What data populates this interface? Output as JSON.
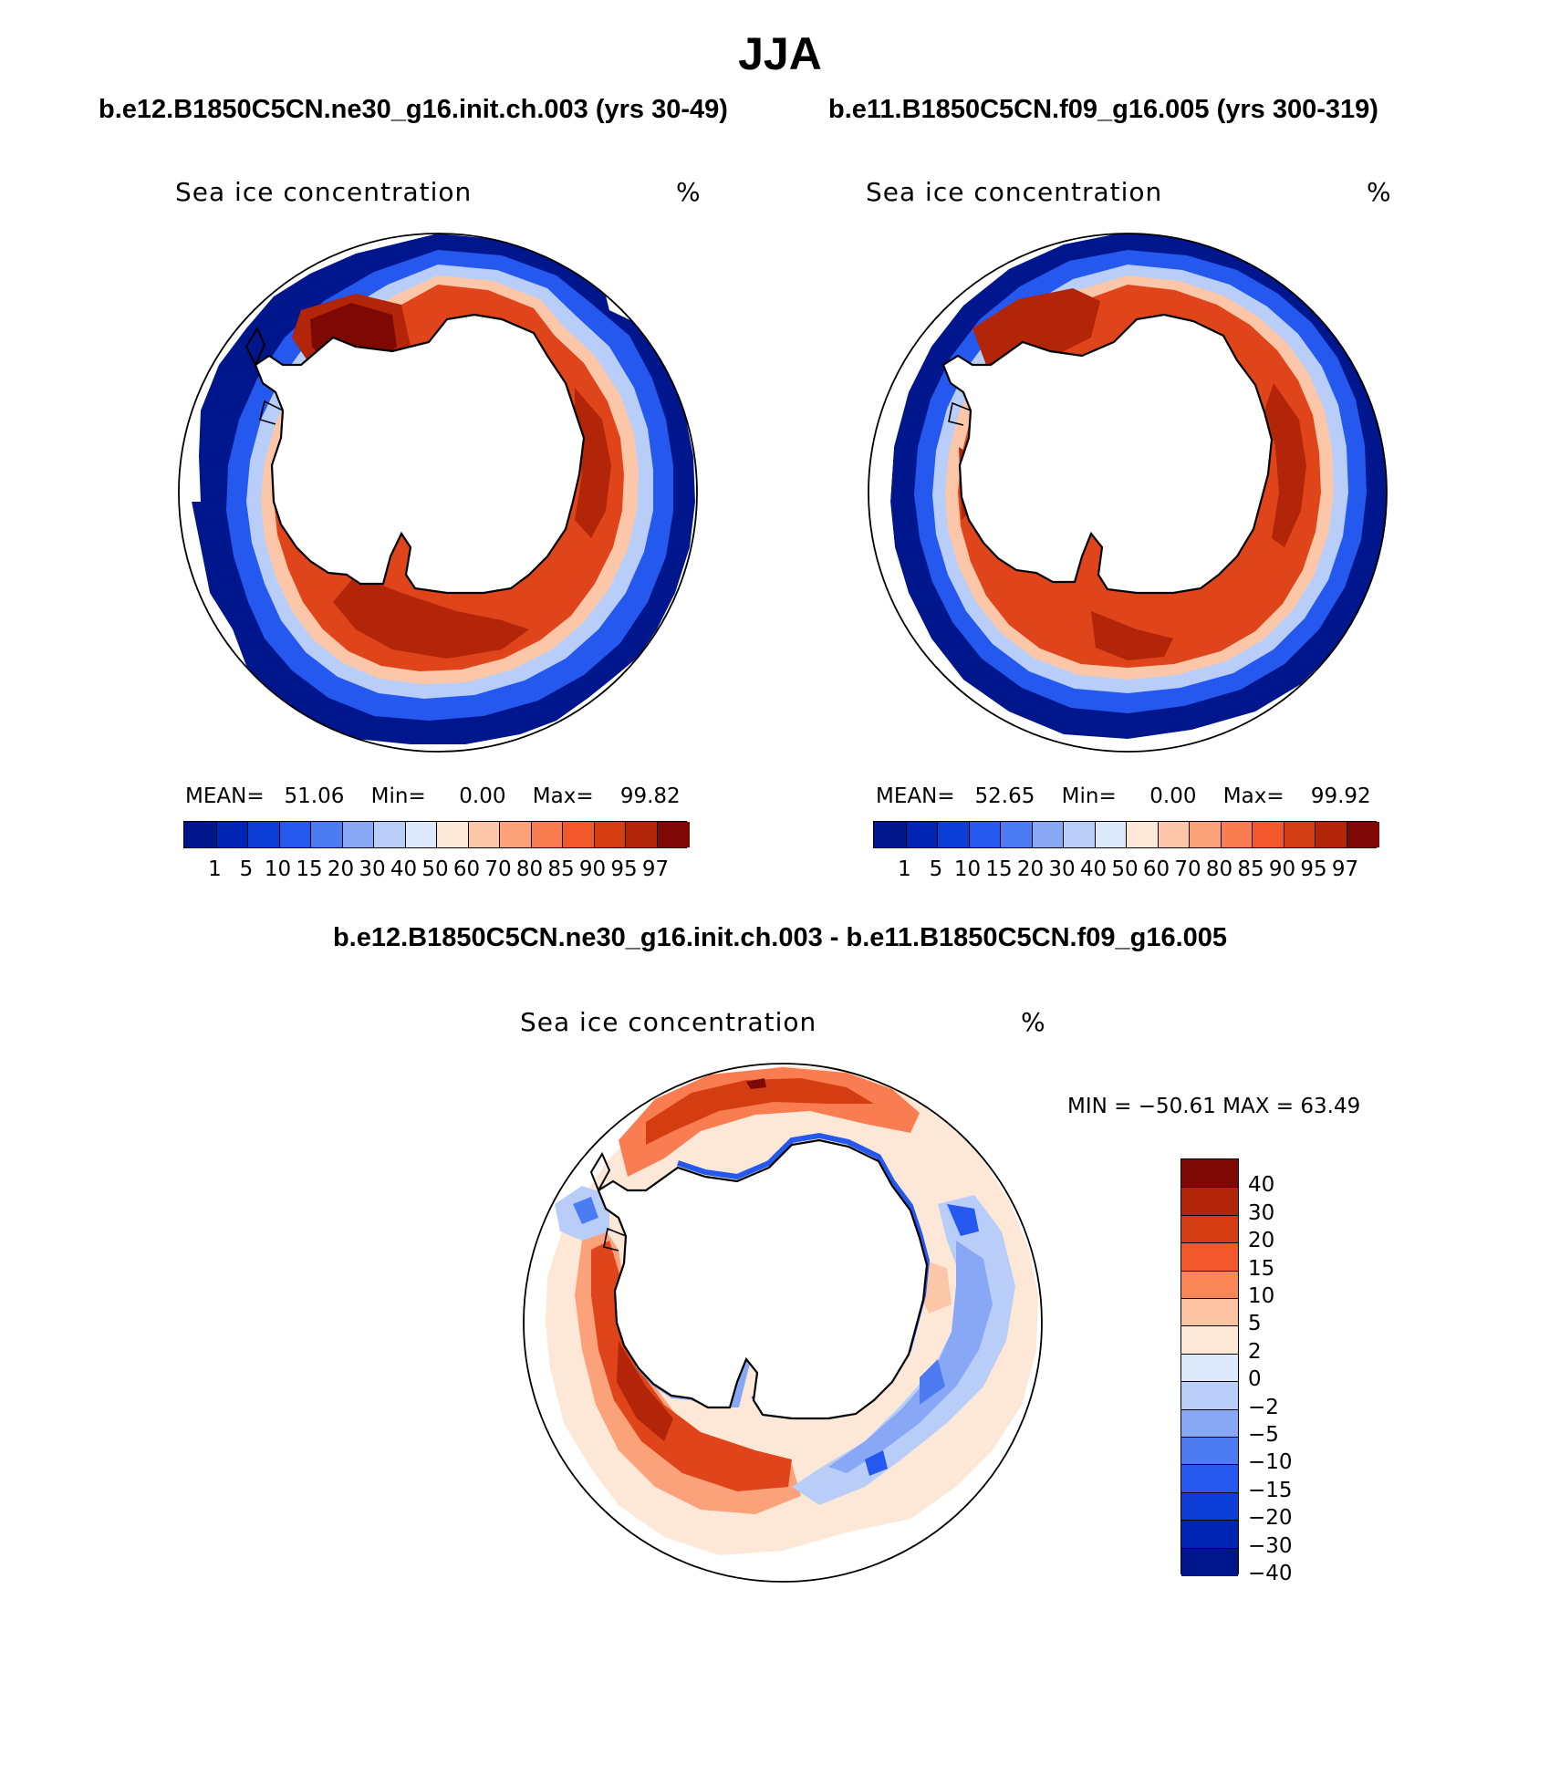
{
  "title": "JJA",
  "panels": [
    {
      "case_title": "b.e12.B1850C5CN.ne30_g16.init.ch.003 (yrs 30-49)",
      "variable": "Sea ice concentration",
      "units": "%",
      "stats": {
        "mean_label": "MEAN=",
        "mean": "51.06",
        "min_label": "Min=",
        "min": "0.00",
        "max_label": "Max=",
        "max": "99.82"
      }
    },
    {
      "case_title": "b.e11.B1850C5CN.f09_g16.005 (yrs 300-319)",
      "variable": "Sea ice concentration",
      "units": "%",
      "stats": {
        "mean_label": "MEAN=",
        "mean": "52.65",
        "min_label": "Min=",
        "min": "0.00",
        "max_label": "Max=",
        "max": "99.92"
      }
    }
  ],
  "diff_panel": {
    "title": "b.e12.B1850C5CN.ne30_g16.init.ch.003 - b.e11.B1850C5CN.f09_g16.005",
    "variable": "Sea ice concentration",
    "units": "%",
    "minmax_text": "MIN = −50.61  MAX =    63.49"
  },
  "abs_colorbar": {
    "labels": [
      "1",
      "5",
      "10",
      "15",
      "20",
      "30",
      "40",
      "50",
      "60",
      "70",
      "80",
      "85",
      "90",
      "95",
      "97"
    ],
    "colors": [
      "#00168c",
      "#0025b4",
      "#0e3ed8",
      "#2458ee",
      "#4d7cf2",
      "#88a8f6",
      "#b8cef9",
      "#dceafc",
      "#fde8d8",
      "#fcc7a8",
      "#fba27a",
      "#f97d50",
      "#f2582c",
      "#d43d12",
      "#b22508",
      "#7e0904"
    ]
  },
  "diff_colorbar": {
    "labels": [
      "40",
      "30",
      "20",
      "15",
      "10",
      "5",
      "2",
      "0",
      "−2",
      "−5",
      "−10",
      "−15",
      "−20",
      "−30",
      "−40"
    ],
    "colors": [
      "#7e0904",
      "#b22508",
      "#d43d12",
      "#f2582c",
      "#fb8757",
      "#fcc2a2",
      "#fde8d8",
      "#dceafc",
      "#b8cef9",
      "#88a8f6",
      "#4d7cf2",
      "#2458ee",
      "#0e3ed8",
      "#0025b4",
      "#00168c"
    ]
  },
  "colors": {
    "ice_high": "#b22508",
    "ice_mid": "#e0441a",
    "ice_low": "#dceafc",
    "ice_edge": "#00168c",
    "diff_pos": "#d43d12",
    "diff_neg": "#2458ee",
    "diff_zero_pos": "#fde8d8",
    "diff_zero_neg": "#dceafc"
  }
}
